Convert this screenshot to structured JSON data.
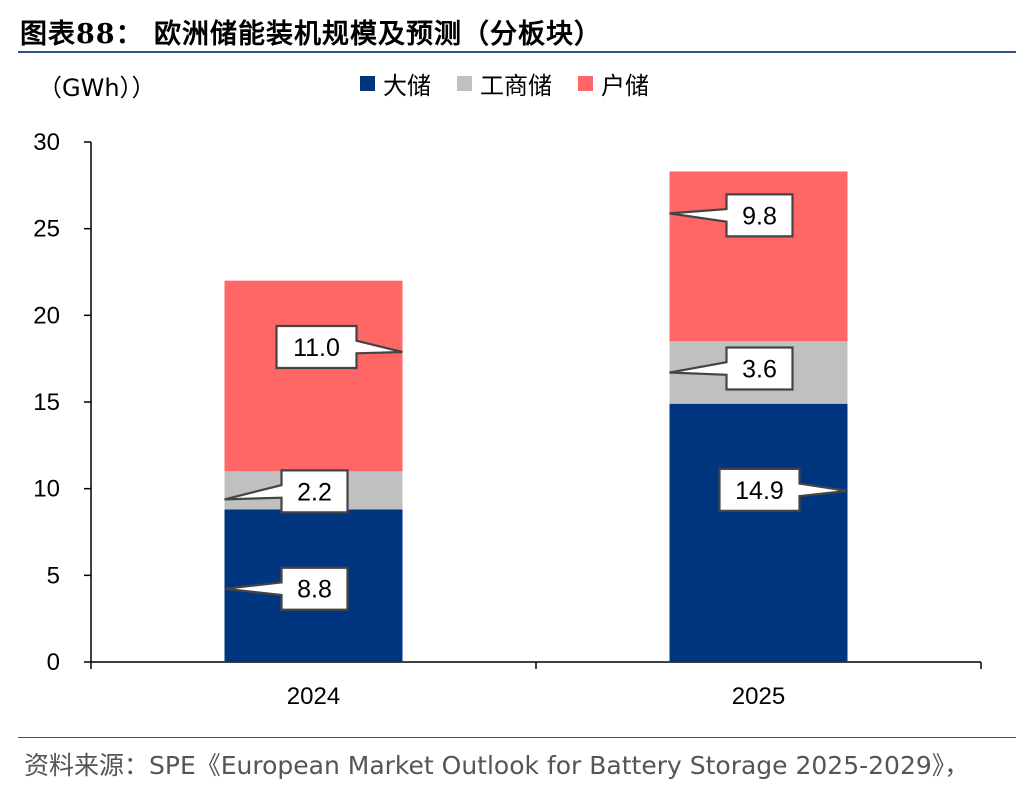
{
  "title": "图表88：  欧洲储能装机规模及预测（分板块）",
  "unit_label": "（GWh））",
  "source": "资料来源：SPE《European Market Outlook for Battery Storage 2025-2029》，",
  "legend": [
    {
      "label": "大储",
      "color": "#003580"
    },
    {
      "label": "工商储",
      "color": "#c0c0c0"
    },
    {
      "label": "户储",
      "color": "#ff6666"
    }
  ],
  "chart_data": {
    "type": "bar",
    "stacked": true,
    "categories": [
      "2024",
      "2025"
    ],
    "series": [
      {
        "name": "大储",
        "values": [
          8.8,
          14.9
        ],
        "labels": [
          "8.8",
          "14.9"
        ],
        "color": "#003580"
      },
      {
        "name": "工商储",
        "values": [
          2.2,
          3.6
        ],
        "labels": [
          "2.2",
          "3.6"
        ],
        "color": "#c0c0c0"
      },
      {
        "name": "户储",
        "values": [
          11.0,
          9.8
        ],
        "labels": [
          "11.0",
          "9.8"
        ],
        "color": "#ff6666"
      }
    ],
    "ylim": [
      0,
      30
    ],
    "yticks": [
      "0",
      "5",
      "10",
      "15",
      "20",
      "25",
      "30"
    ],
    "grid": false,
    "legend_position": "top"
  }
}
